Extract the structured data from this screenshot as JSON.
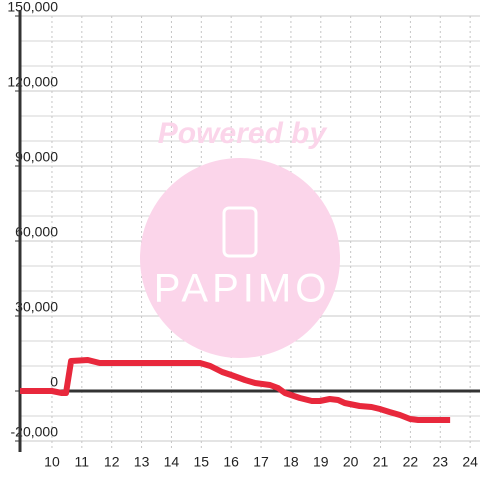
{
  "chart_data": {
    "type": "line",
    "watermark": {
      "caption": "Powered by",
      "brand": "PAPIMO"
    },
    "x": [
      8.93,
      10,
      10.33,
      10.47,
      10.64,
      11.2,
      11.6,
      14.96,
      15.3,
      15.7,
      16.0,
      16.46,
      16.8,
      17.3,
      17.57,
      17.8,
      18.3,
      18.7,
      18.97,
      19.3,
      19.58,
      19.8,
      20.3,
      20.7,
      20.98,
      21.3,
      21.65,
      21.99,
      22.26,
      23.33
    ],
    "series": [
      {
        "color": "#e8283c",
        "values": [
          0,
          0,
          -800,
          -800,
          12000,
          12400,
          11200,
          11200,
          10000,
          7600,
          6400,
          4400,
          3200,
          2400,
          1200,
          -800,
          -2800,
          -4000,
          -4000,
          -3200,
          -3600,
          -4800,
          -6000,
          -6400,
          -7200,
          -8400,
          -9600,
          -11200,
          -11600,
          -11600
        ]
      }
    ],
    "xlim": [
      8.93,
      24.33
    ],
    "xticks": [
      10,
      11,
      12,
      13,
      14,
      15,
      16,
      17,
      18,
      19,
      20,
      21,
      22,
      23,
      24
    ],
    "ylim": [
      -20000,
      150000
    ],
    "yticks": [
      {
        "value": -20000,
        "label": "-20,000"
      },
      0,
      {
        "value": 30000,
        "label": "30,000"
      },
      {
        "value": 60000,
        "label": "60,000"
      },
      {
        "value": 90000,
        "label": "90,000"
      },
      {
        "value": 120000,
        "label": "120,000"
      },
      {
        "value": 150000,
        "label": "150,000"
      }
    ],
    "y_minor_ticks": [
      -10000,
      10000,
      20000,
      40000,
      50000,
      70000,
      80000,
      100000,
      110000,
      130000,
      140000
    ],
    "grid": true
  }
}
